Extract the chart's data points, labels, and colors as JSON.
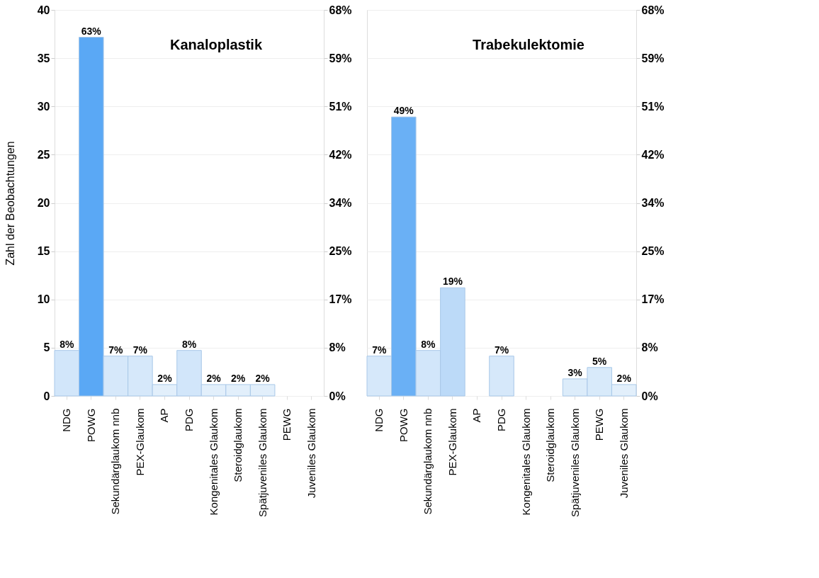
{
  "chart_data": [
    {
      "type": "bar",
      "title": "Kanaloplastik",
      "ylabel": "Zahl der Beobachtungen",
      "categories": [
        "NDG",
        "POWG",
        "Sekundärglaukom nnb",
        "PEX-Glaukom",
        "AP",
        "PDG",
        "Kongenitales Glaukom",
        "Steroidglaukom",
        "Spätjuveniles Glaukom",
        "PEWG",
        "Juveniles Glaukom"
      ],
      "series": [
        {
          "axis": "y2",
          "values": [
            8,
            63,
            7,
            7,
            2,
            8,
            2,
            2,
            2,
            null,
            null
          ],
          "colors": [
            "#d2e6fa",
            "#5aa8f5",
            "#d6e8fa",
            "#d6e8fa",
            "#e2effb",
            "#d2e6fa",
            "#e2effb",
            "#e2effb",
            "#e2effb",
            "#e2effb",
            "#e2effb"
          ],
          "value_labels": [
            "8%",
            "63%",
            "7%",
            "7%",
            "2%",
            "8%",
            "2%",
            "2%",
            "2%",
            null,
            null
          ]
        }
      ],
      "ylim": [
        0,
        40
      ],
      "yticks": [
        0,
        5,
        10,
        15,
        20,
        25,
        30,
        35,
        40
      ],
      "y2lim": [
        0,
        67.8
      ],
      "y2ticks": [
        {
          "value": 0,
          "label": "0%"
        },
        {
          "value": 8.47,
          "label": "8%"
        },
        {
          "value": 16.95,
          "label": "17%"
        },
        {
          "value": 25.42,
          "label": "25%"
        },
        {
          "value": 33.9,
          "label": "34%"
        },
        {
          "value": 42.37,
          "label": "42%"
        },
        {
          "value": 50.85,
          "label": "51%"
        },
        {
          "value": 59.32,
          "label": "59%"
        },
        {
          "value": 67.8,
          "label": "68%"
        }
      ],
      "grid": "y"
    },
    {
      "type": "bar",
      "title": "Trabekulektomie",
      "categories": [
        "NDG",
        "POWG",
        "Sekundärglaukom nnb",
        "PEX-Glaukom",
        "AP",
        "PDG",
        "Kongenitales Glaukom",
        "Steroidglaukom",
        "Spätjuveniles Glaukom",
        "PEWG",
        "Juveniles Glaukom"
      ],
      "series": [
        {
          "axis": "y2",
          "values": [
            7,
            49,
            8,
            19,
            null,
            7,
            null,
            null,
            3,
            5,
            2
          ],
          "colors": [
            "#d6e8fa",
            "#6ab0f5",
            "#d2e6fa",
            "#bcdaf8",
            "#e2effb",
            "#d6e8fa",
            "#e2effb",
            "#e2effb",
            "#dcecfa",
            "#d8eafa",
            "#e2effb"
          ],
          "value_labels": [
            "7%",
            "49%",
            "8%",
            "19%",
            null,
            "7%",
            null,
            null,
            "3%",
            "5%",
            "2%"
          ]
        }
      ],
      "y2lim": [
        0,
        67.8
      ],
      "y2ticks": [
        {
          "value": 0,
          "label": "0%"
        },
        {
          "value": 8.47,
          "label": "8%"
        },
        {
          "value": 16.95,
          "label": "17%"
        },
        {
          "value": 25.42,
          "label": "25%"
        },
        {
          "value": 33.9,
          "label": "34%"
        },
        {
          "value": 42.37,
          "label": "42%"
        },
        {
          "value": 50.85,
          "label": "51%"
        },
        {
          "value": 59.32,
          "label": "59%"
        },
        {
          "value": 67.8,
          "label": "68%"
        }
      ],
      "grid": "y"
    }
  ]
}
